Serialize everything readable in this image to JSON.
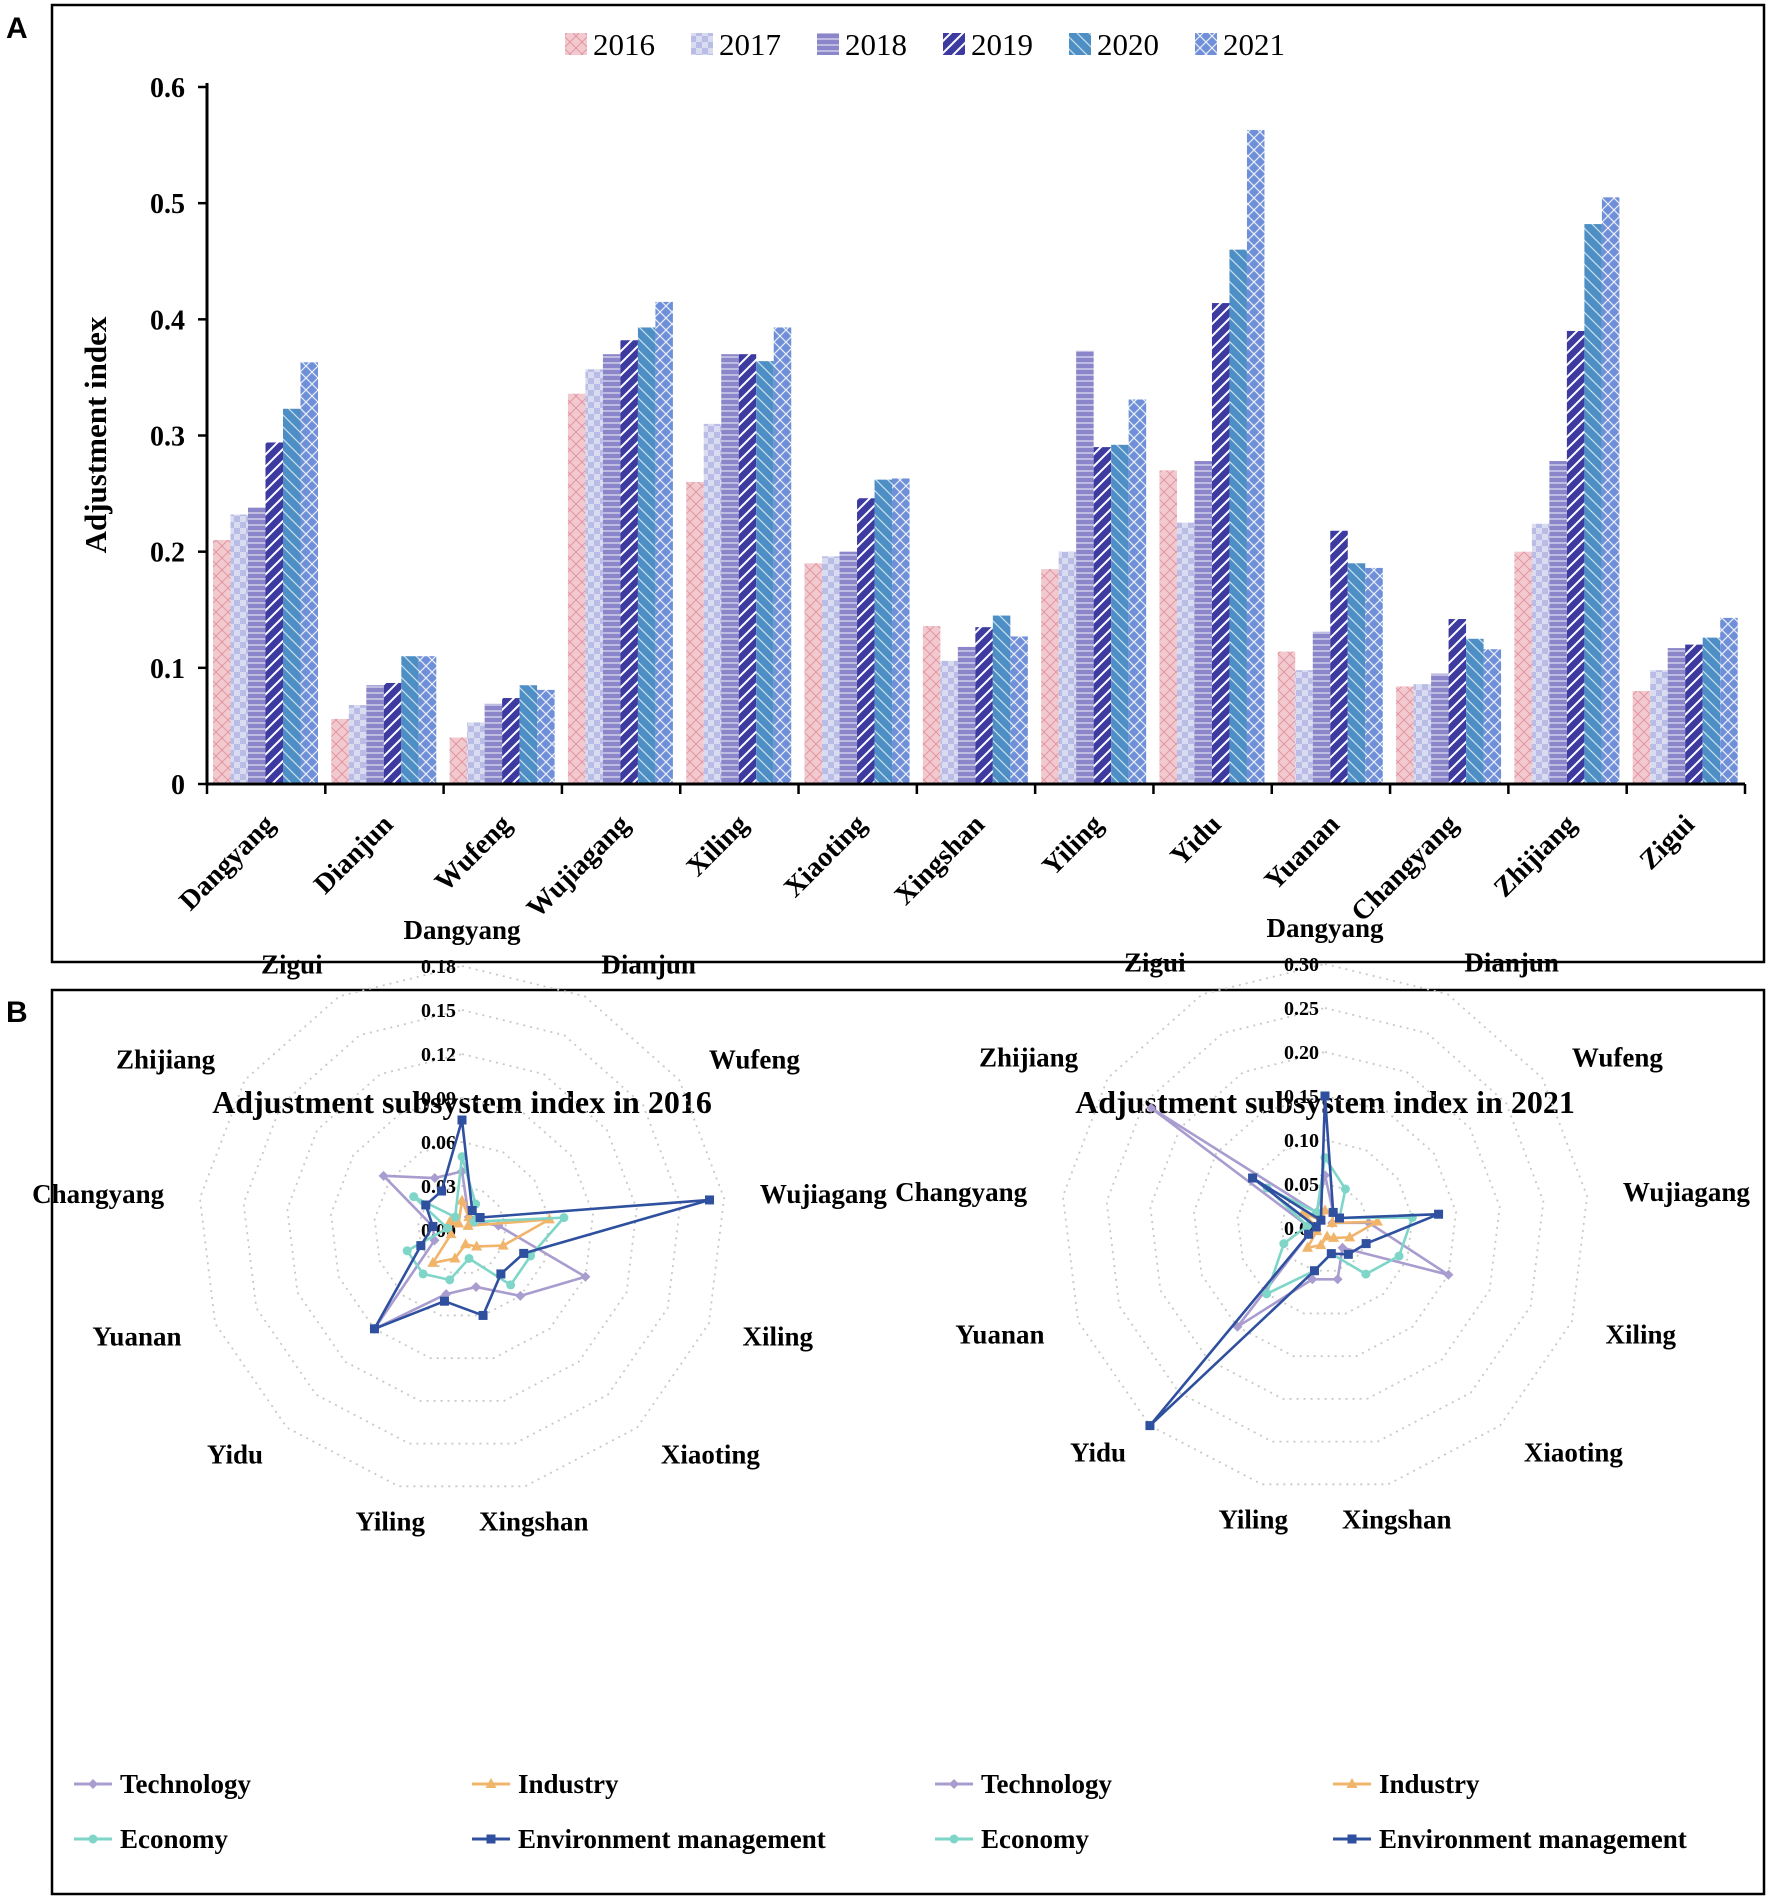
{
  "panels": {
    "a_label": "A",
    "b_label": "B"
  },
  "colors": {
    "y2016": "#f2c9cf",
    "y2016_line": "#e08f9b",
    "y2017": "#b9bde6",
    "y2017_line": "#8f94cf",
    "y2018": "#8a86c9",
    "y2018_line": "#5e5aa6",
    "y2019": "#3d3aa0",
    "y2019_line": "#ffffff",
    "y2020": "#4d8fc4",
    "y2020_line": "#2e6c9e",
    "y2021": "#6f8fd9",
    "y2021_line": "#ffffff",
    "technology": "#a99ccf",
    "industry": "#f0b46a",
    "economy": "#7fd6c8",
    "environment": "#2f4f9f"
  },
  "chart_data": [
    {
      "type": "bar",
      "title": "",
      "xlabel": "",
      "ylabel": "Adjustment index",
      "ylim": [
        0,
        0.6
      ],
      "yticks": [
        "0",
        "0.1",
        "0.2",
        "0.3",
        "0.4",
        "0.5",
        "0.6"
      ],
      "legend": "top",
      "categories": [
        "Dangyang",
        "Dianjun",
        "Wufeng",
        "Wujiagang",
        "Xiling",
        "Xiaoting",
        "Xingshan",
        "Yiling",
        "Yidu",
        "Yuanan",
        "Changyang",
        "Zhijiang",
        "Zigui"
      ],
      "series": [
        {
          "name": "2016",
          "values": [
            0.21,
            0.056,
            0.04,
            0.336,
            0.26,
            0.19,
            0.136,
            0.185,
            0.27,
            0.114,
            0.084,
            0.2,
            0.08
          ]
        },
        {
          "name": "2017",
          "values": [
            0.232,
            0.068,
            0.053,
            0.357,
            0.31,
            0.196,
            0.106,
            0.2,
            0.225,
            0.098,
            0.086,
            0.224,
            0.098
          ]
        },
        {
          "name": "2018",
          "values": [
            0.238,
            0.085,
            0.069,
            0.37,
            0.37,
            0.2,
            0.118,
            0.373,
            0.278,
            0.131,
            0.095,
            0.278,
            0.117
          ]
        },
        {
          "name": "2019",
          "values": [
            0.294,
            0.087,
            0.074,
            0.382,
            0.37,
            0.246,
            0.135,
            0.29,
            0.414,
            0.218,
            0.142,
            0.39,
            0.12
          ]
        },
        {
          "name": "2020",
          "values": [
            0.323,
            0.11,
            0.085,
            0.393,
            0.364,
            0.262,
            0.145,
            0.292,
            0.46,
            0.19,
            0.125,
            0.482,
            0.126
          ]
        },
        {
          "name": "2021",
          "values": [
            0.363,
            0.11,
            0.081,
            0.415,
            0.393,
            0.263,
            0.127,
            0.331,
            0.563,
            0.186,
            0.116,
            0.505,
            0.143
          ]
        }
      ]
    },
    {
      "type": "radar",
      "title": "Adjustment subsystem index in 2016",
      "categories": [
        "Dangyang",
        "Dianjun",
        "Wufeng",
        "Wujiagang",
        "Xiling",
        "Xiaoting",
        "Xingshan",
        "Yiling",
        "Yidu",
        "Yuanan",
        "Changyang",
        "Zhijiang",
        "Zigui"
      ],
      "rmax": 0.18,
      "rticks": [
        "0.00",
        "0.03",
        "0.06",
        "0.09",
        "0.12",
        "0.15",
        "0.18"
      ],
      "legend": "bottom",
      "series": [
        {
          "name": "Technology",
          "values": [
            0.04,
            0.01,
            0.01,
            0.025,
            0.09,
            0.06,
            0.04,
            0.045,
            0.09,
            0.02,
            0.02,
            0.065,
            0.04
          ]
        },
        {
          "name": "Industry",
          "values": [
            0.02,
            0.01,
            0.005,
            0.06,
            0.03,
            0.015,
            0.01,
            0.02,
            0.03,
            0.008,
            0.01,
            0.01,
            0.005
          ]
        },
        {
          "name": "Economy",
          "values": [
            0.05,
            0.02,
            0.01,
            0.07,
            0.05,
            0.05,
            0.02,
            0.035,
            0.04,
            0.04,
            0.01,
            0.04,
            0.01
          ]
        },
        {
          "name": "Environment management",
          "values": [
            0.075,
            0.015,
            0.015,
            0.17,
            0.045,
            0.04,
            0.06,
            0.05,
            0.09,
            0.03,
            0.02,
            0.03,
            0.03
          ]
        }
      ]
    },
    {
      "type": "radar",
      "title": "Adjustment subsystem index in 2021",
      "categories": [
        "Dangyang",
        "Dianjun",
        "Wufeng",
        "Wujiagang",
        "Xiling",
        "Xiaoting",
        "Xingshan",
        "Yiling",
        "Yidu",
        "Yuanan",
        "Changyang",
        "Zhijiang",
        "Zigui"
      ],
      "rmax": 0.3,
      "rticks": [
        "0.00",
        "0.05",
        "0.10",
        "0.15",
        "0.20",
        "0.25",
        "0.30"
      ],
      "legend": "bottom",
      "series": [
        {
          "name": "Technology",
          "values": [
            0.06,
            0.02,
            0.01,
            0.05,
            0.15,
            0.03,
            0.06,
            0.06,
            0.15,
            0.02,
            0.02,
            0.24,
            0.02
          ]
        },
        {
          "name": "Industry",
          "values": [
            0.02,
            0.02,
            0.01,
            0.06,
            0.03,
            0.015,
            0.01,
            0.02,
            0.03,
            0.01,
            0.01,
            0.03,
            0.01
          ]
        },
        {
          "name": "Economy",
          "values": [
            0.08,
            0.05,
            0.02,
            0.1,
            0.09,
            0.07,
            0.03,
            0.05,
            0.1,
            0.05,
            0.02,
            0.08,
            0.02
          ]
        },
        {
          "name": "Environment management",
          "values": [
            0.15,
            0.02,
            0.02,
            0.13,
            0.05,
            0.04,
            0.03,
            0.05,
            0.3,
            0.02,
            0.01,
            0.1,
            0.01
          ]
        }
      ]
    }
  ]
}
